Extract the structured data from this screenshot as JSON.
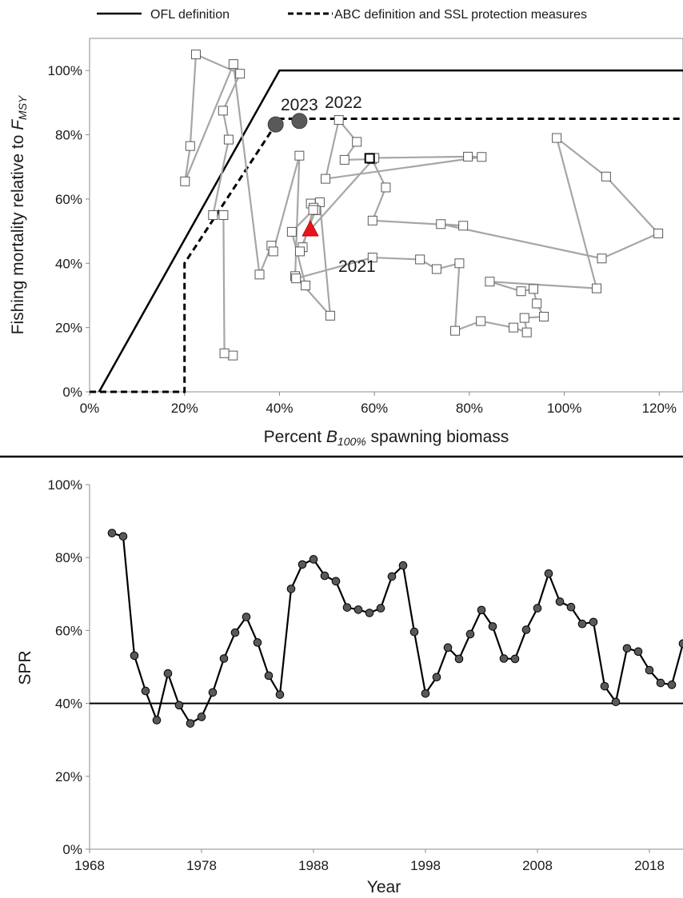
{
  "legend": {
    "ofl_label": "OFL definition",
    "abc_label": "ABC definition and SSL protection measures"
  },
  "chart_data": [
    {
      "type": "scatter",
      "title": "",
      "xlabel_prefix": "Percent ",
      "xlabel_symbol": "B",
      "xlabel_subscript": "100%",
      "xlabel_suffix": " spawning biomass",
      "ylabel_prefix": "Fishing mortality relative to ",
      "ylabel_symbol": "F",
      "ylabel_subscript": "MSY",
      "xlim": [
        0,
        1.25
      ],
      "ylim": [
        0,
        1.1
      ],
      "xticks": [
        0,
        0.2,
        0.4,
        0.6,
        0.8,
        1.0,
        1.2
      ],
      "xtick_labels": [
        "0%",
        "20%",
        "40%",
        "60%",
        "80%",
        "100%",
        "120%"
      ],
      "yticks": [
        0,
        0.2,
        0.4,
        0.6,
        0.8,
        1.0
      ],
      "ytick_labels": [
        "0%",
        "20%",
        "40%",
        "60%",
        "80%",
        "100%"
      ],
      "grid": false,
      "legend_position": "top",
      "ofl_line": {
        "x": [
          0.02,
          0.4,
          1.25
        ],
        "y": [
          0,
          1.0,
          1.0
        ]
      },
      "abc_line": {
        "x": [
          0,
          0.2,
          0.2,
          0.4,
          1.25
        ],
        "y": [
          0,
          0,
          0.4,
          0.85,
          0.85
        ]
      },
      "trajectory": {
        "x": [
          0.302,
          0.284,
          0.282,
          0.26,
          0.293,
          0.281,
          0.317,
          0.224,
          0.212,
          0.201,
          0.303,
          0.358,
          0.383,
          0.387,
          0.442,
          0.433,
          0.507,
          0.485,
          0.466,
          0.472,
          0.449,
          0.443,
          0.476,
          0.471,
          0.426,
          0.455,
          0.435,
          0.596,
          0.696,
          0.731,
          0.779,
          0.77,
          0.824,
          0.893,
          0.921,
          0.916,
          0.957,
          0.942,
          0.935,
          0.909,
          0.843,
          1.068,
          0.984,
          1.088,
          1.198,
          1.079,
          0.74,
          0.787,
          0.596,
          0.624,
          0.595,
          0.537,
          0.563,
          0.525,
          0.497,
          0.826,
          0.797,
          0.6
        ],
        "y": [
          0.113,
          0.12,
          0.55,
          0.55,
          0.785,
          0.875,
          0.99,
          1.05,
          0.765,
          0.655,
          1.02,
          0.365,
          0.455,
          0.437,
          0.735,
          0.36,
          0.237,
          0.59,
          0.586,
          0.573,
          0.45,
          0.437,
          0.565,
          0.566,
          0.498,
          0.331,
          0.353,
          0.418,
          0.412,
          0.382,
          0.4,
          0.19,
          0.22,
          0.2,
          0.185,
          0.23,
          0.234,
          0.275,
          0.32,
          0.313,
          0.343,
          0.322,
          0.79,
          0.67,
          0.493,
          0.415,
          0.522,
          0.517,
          0.533,
          0.636,
          0.724,
          0.722,
          0.778,
          0.846,
          0.663,
          0.731,
          0.732,
          0.728
        ]
      },
      "highlight_square": {
        "x": 0.59,
        "y": 0.727
      },
      "current_triangle": {
        "x": 0.465,
        "y": 0.505,
        "color": "#e8141b"
      },
      "projections": [
        {
          "label": "2023",
          "x": 0.392,
          "y": 0.832
        },
        {
          "label": "2022",
          "x": 0.442,
          "y": 0.843
        }
      ],
      "year_labels": {
        "y2023": "2023",
        "y2022": "2022",
        "y2021": "2021"
      },
      "colors": {
        "trajectory_line": "#a6a6a6",
        "projection_marker": "#595959",
        "reference_lines": "#000000"
      }
    },
    {
      "type": "line",
      "title": "",
      "xlabel": "Year",
      "ylabel": "SPR",
      "xlim": [
        1968,
        2021
      ],
      "ylim": [
        0,
        1.0
      ],
      "xticks": [
        1968,
        1978,
        1988,
        1998,
        2008,
        2018
      ],
      "xtick_labels": [
        "1968",
        "1978",
        "1988",
        "1998",
        "2008",
        "2018"
      ],
      "yticks": [
        0,
        0.2,
        0.4,
        0.6,
        0.8,
        1.0
      ],
      "ytick_labels": [
        "0%",
        "20%",
        "40%",
        "60%",
        "80%",
        "100%"
      ],
      "grid": false,
      "reference_line": 0.4,
      "x": [
        1970,
        1971,
        1972,
        1973,
        1974,
        1975,
        1976,
        1977,
        1978,
        1979,
        1980,
        1981,
        1982,
        1983,
        1984,
        1985,
        1986,
        1987,
        1988,
        1989,
        1990,
        1991,
        1992,
        1993,
        1994,
        1995,
        1996,
        1997,
        1998,
        1999,
        2000,
        2001,
        2002,
        2003,
        2004,
        2005,
        2006,
        2007,
        2008,
        2009,
        2010,
        2011,
        2012,
        2013,
        2014,
        2015,
        2016,
        2017,
        2018,
        2019,
        2020,
        2021
      ],
      "values": [
        0.867,
        0.858,
        0.531,
        0.434,
        0.354,
        0.482,
        0.395,
        0.345,
        0.363,
        0.43,
        0.523,
        0.594,
        0.637,
        0.567,
        0.476,
        0.424,
        0.714,
        0.781,
        0.795,
        0.75,
        0.735,
        0.663,
        0.657,
        0.648,
        0.661,
        0.748,
        0.778,
        0.596,
        0.427,
        0.472,
        0.553,
        0.522,
        0.59,
        0.656,
        0.611,
        0.523,
        0.522,
        0.602,
        0.661,
        0.756,
        0.679,
        0.664,
        0.618,
        0.623,
        0.447,
        0.404,
        0.551,
        0.542,
        0.491,
        0.456,
        0.451,
        0.564
      ],
      "colors": {
        "line": "#000000",
        "marker": "#595959"
      }
    }
  ]
}
